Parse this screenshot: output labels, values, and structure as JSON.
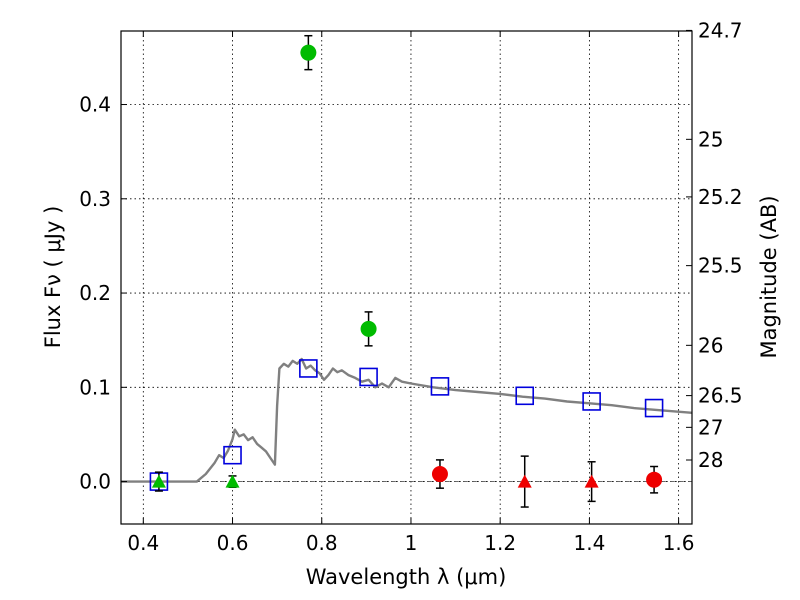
{
  "chart_data": {
    "type": "scatter",
    "xlabel": "Wavelength  λ (μm)",
    "ylabel": "Flux  Fν  ( μJy )",
    "ylabel_right": "Magnitude (AB)",
    "xlim": [
      0.35,
      1.63
    ],
    "ylim": [
      -0.045,
      0.478
    ],
    "grid": true,
    "x_ticks": [
      {
        "value": 0.4,
        "label": "0.4"
      },
      {
        "value": 0.6,
        "label": "0.6"
      },
      {
        "value": 0.8,
        "label": "0.8"
      },
      {
        "value": 1.0,
        "label": "1"
      },
      {
        "value": 1.2,
        "label": "1.2"
      },
      {
        "value": 1.4,
        "label": "1.4"
      },
      {
        "value": 1.6,
        "label": "1.6"
      }
    ],
    "y_ticks": [
      {
        "value": 0.0,
        "label": "0.0"
      },
      {
        "value": 0.1,
        "label": "0.1"
      },
      {
        "value": 0.2,
        "label": "0.2"
      },
      {
        "value": 0.3,
        "label": "0.3"
      },
      {
        "value": 0.4,
        "label": "0.4"
      }
    ],
    "right_ticks": [
      {
        "value": 24.7,
        "label": "24.7"
      },
      {
        "value": 25,
        "label": "25"
      },
      {
        "value": 25.2,
        "label": "25.2"
      },
      {
        "value": 25.5,
        "label": "25.5"
      },
      {
        "value": 26,
        "label": "26"
      },
      {
        "value": 26.5,
        "label": "26.5"
      },
      {
        "value": 27,
        "label": "27"
      },
      {
        "value": 28,
        "label": "28"
      }
    ],
    "series": [
      {
        "kind": "line",
        "color": "#808080",
        "points": [
          [
            0.35,
            0.0
          ],
          [
            0.52,
            0.0
          ],
          [
            0.54,
            0.008
          ],
          [
            0.56,
            0.02
          ],
          [
            0.57,
            0.028
          ],
          [
            0.58,
            0.025
          ],
          [
            0.59,
            0.033
          ],
          [
            0.6,
            0.045
          ],
          [
            0.605,
            0.055
          ],
          [
            0.615,
            0.048
          ],
          [
            0.625,
            0.05
          ],
          [
            0.635,
            0.044
          ],
          [
            0.645,
            0.047
          ],
          [
            0.655,
            0.04
          ],
          [
            0.665,
            0.036
          ],
          [
            0.675,
            0.032
          ],
          [
            0.685,
            0.025
          ],
          [
            0.695,
            0.018
          ],
          [
            0.7,
            0.08
          ],
          [
            0.705,
            0.12
          ],
          [
            0.715,
            0.125
          ],
          [
            0.725,
            0.122
          ],
          [
            0.735,
            0.128
          ],
          [
            0.745,
            0.125
          ],
          [
            0.755,
            0.13
          ],
          [
            0.765,
            0.12
          ],
          [
            0.775,
            0.123
          ],
          [
            0.785,
            0.118
          ],
          [
            0.795,
            0.115
          ],
          [
            0.805,
            0.108
          ],
          [
            0.815,
            0.113
          ],
          [
            0.825,
            0.12
          ],
          [
            0.835,
            0.116
          ],
          [
            0.845,
            0.118
          ],
          [
            0.86,
            0.113
          ],
          [
            0.875,
            0.11
          ],
          [
            0.89,
            0.106
          ],
          [
            0.905,
            0.108
          ],
          [
            0.92,
            0.1
          ],
          [
            0.935,
            0.104
          ],
          [
            0.95,
            0.1
          ],
          [
            0.965,
            0.11
          ],
          [
            0.98,
            0.106
          ],
          [
            1.0,
            0.104
          ],
          [
            1.05,
            0.1
          ],
          [
            1.1,
            0.097
          ],
          [
            1.15,
            0.095
          ],
          [
            1.2,
            0.093
          ],
          [
            1.25,
            0.09
          ],
          [
            1.3,
            0.088
          ],
          [
            1.35,
            0.085
          ],
          [
            1.4,
            0.083
          ],
          [
            1.45,
            0.081
          ],
          [
            1.5,
            0.078
          ],
          [
            1.55,
            0.076
          ],
          [
            1.63,
            0.073
          ]
        ]
      },
      {
        "kind": "square",
        "color": "#0000dd",
        "points": [
          [
            0.435,
            0.0
          ],
          [
            0.6,
            0.028
          ],
          [
            0.77,
            0.12
          ],
          [
            0.905,
            0.111
          ],
          [
            1.065,
            0.101
          ],
          [
            1.255,
            0.091
          ],
          [
            1.405,
            0.085
          ],
          [
            1.545,
            0.078
          ]
        ]
      },
      {
        "kind": "circle",
        "color": "#00bb00",
        "points": [
          {
            "x": 0.77,
            "y": 0.455,
            "err": 0.018
          },
          {
            "x": 0.905,
            "y": 0.162,
            "err": 0.018
          }
        ]
      },
      {
        "kind": "triangle",
        "color": "#00bb00",
        "points": [
          {
            "x": 0.435,
            "y": 0.0,
            "err": 0.01
          },
          {
            "x": 0.6,
            "y": 0.0,
            "err": 0.006
          }
        ]
      },
      {
        "kind": "circle",
        "color": "#ee0000",
        "points": [
          {
            "x": 1.065,
            "y": 0.008,
            "err": 0.015
          },
          {
            "x": 1.545,
            "y": 0.002,
            "err": 0.014
          }
        ]
      },
      {
        "kind": "triangle",
        "color": "#ee0000",
        "points": [
          {
            "x": 1.255,
            "y": 0.0,
            "err": 0.027
          },
          {
            "x": 1.405,
            "y": 0.0,
            "err": 0.021
          }
        ]
      }
    ]
  }
}
